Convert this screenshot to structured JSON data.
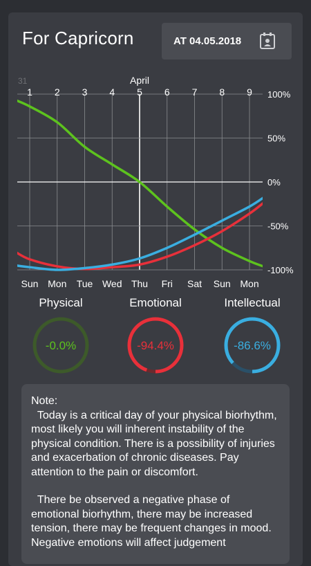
{
  "header": {
    "title": "For Capricorn",
    "date_button": "AT 04.05.2018",
    "date_icon": "calendar-icon"
  },
  "chart_data": {
    "type": "line",
    "top_label": "April",
    "partial_left_label": "31",
    "x_ticks_top": [
      "1",
      "2",
      "3",
      "4",
      "5",
      "6",
      "7",
      "8",
      "9"
    ],
    "x_ticks_bottom": [
      "Sun",
      "Mon",
      "Tue",
      "Wed",
      "Thu",
      "Fri",
      "Sat",
      "Sun",
      "Mon"
    ],
    "y_ticks": [
      "100%",
      "50%",
      "0%",
      "-50%",
      "-100%"
    ],
    "ylim": [
      -100,
      100
    ],
    "current_day": "5",
    "series": [
      {
        "name": "Physical",
        "color": "#5dc21e",
        "x": [
          0.5,
          1,
          2,
          3,
          4,
          5,
          6,
          7,
          8,
          9,
          9.5
        ],
        "values": [
          93,
          86,
          68,
          40,
          20,
          0,
          -28,
          -54,
          -75,
          -90,
          -96
        ]
      },
      {
        "name": "Emotional",
        "color": "#e8303a",
        "x": [
          0.5,
          1,
          2,
          3,
          4,
          5,
          6,
          7,
          8,
          9,
          9.5
        ],
        "values": [
          -80,
          -88,
          -96,
          -99,
          -97,
          -94,
          -85,
          -72,
          -56,
          -36,
          -24
        ]
      },
      {
        "name": "Intellectual",
        "color": "#3aaee0",
        "x": [
          0.5,
          1,
          2,
          3,
          4,
          5,
          6,
          7,
          8,
          9,
          9.5
        ],
        "values": [
          -95,
          -97,
          -100,
          -98,
          -94,
          -87,
          -75,
          -60,
          -44,
          -28,
          -18
        ]
      }
    ]
  },
  "indicators": [
    {
      "name": "Physical",
      "value": "-0.0%",
      "fraction": 0.0,
      "color": "#5dc21e",
      "ring": "#3d5a2a"
    },
    {
      "name": "Emotional",
      "value": "-94.4%",
      "fraction": 0.944,
      "color": "#e8303a",
      "ring": "#6a2a2e"
    },
    {
      "name": "Intellectual",
      "value": "-86.6%",
      "fraction": 0.866,
      "color": "#3aaee0",
      "ring": "#2a5068"
    }
  ],
  "note": {
    "heading": "Note:",
    "paragraph1": "  Today is a critical day of your physical biorhythm, most likely you will inherent instability of the physical condition. There is a possibility of injuries and exacerbation of chronic diseases. Pay attention to the pain or discomfort.",
    "paragraph2": "  There be observed a negative phase of emotional biorhythm, there may be increased tension, there may be frequent changes in mood. Negative emotions will affect judgement"
  }
}
